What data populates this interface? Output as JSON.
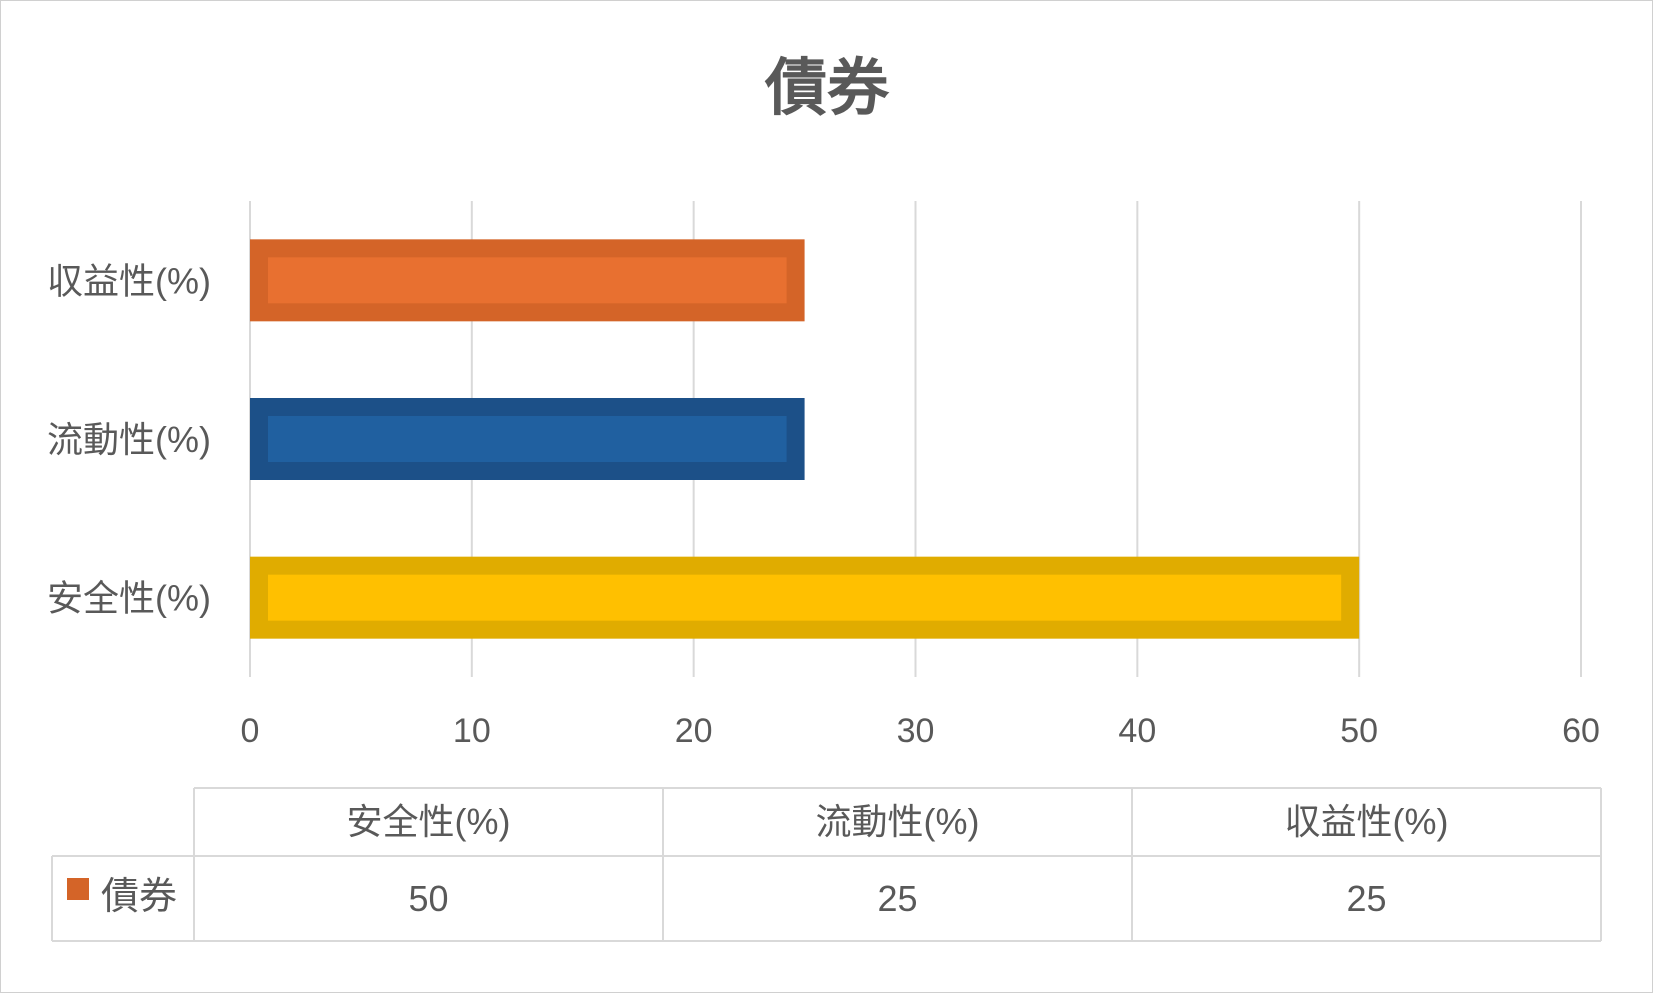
{
  "chart_data": {
    "type": "bar",
    "orientation": "horizontal",
    "title": "債券",
    "categories": [
      "安全性(%)",
      "流動性(%)",
      "収益性(%)"
    ],
    "series": [
      {
        "name": "債券",
        "values": [
          50,
          25,
          25
        ]
      }
    ],
    "bar_colors": [
      "#ffc000",
      "#2060a0",
      "#e87030"
    ],
    "bar_border_colors": [
      "#e0ac00",
      "#1c5088",
      "#d46428"
    ],
    "legend_key_color": "#d46428",
    "xlim": [
      0,
      60
    ],
    "x_ticks": [
      "0",
      "10",
      "20",
      "30",
      "40",
      "50",
      "60"
    ],
    "grid": true,
    "data_table": true
  }
}
